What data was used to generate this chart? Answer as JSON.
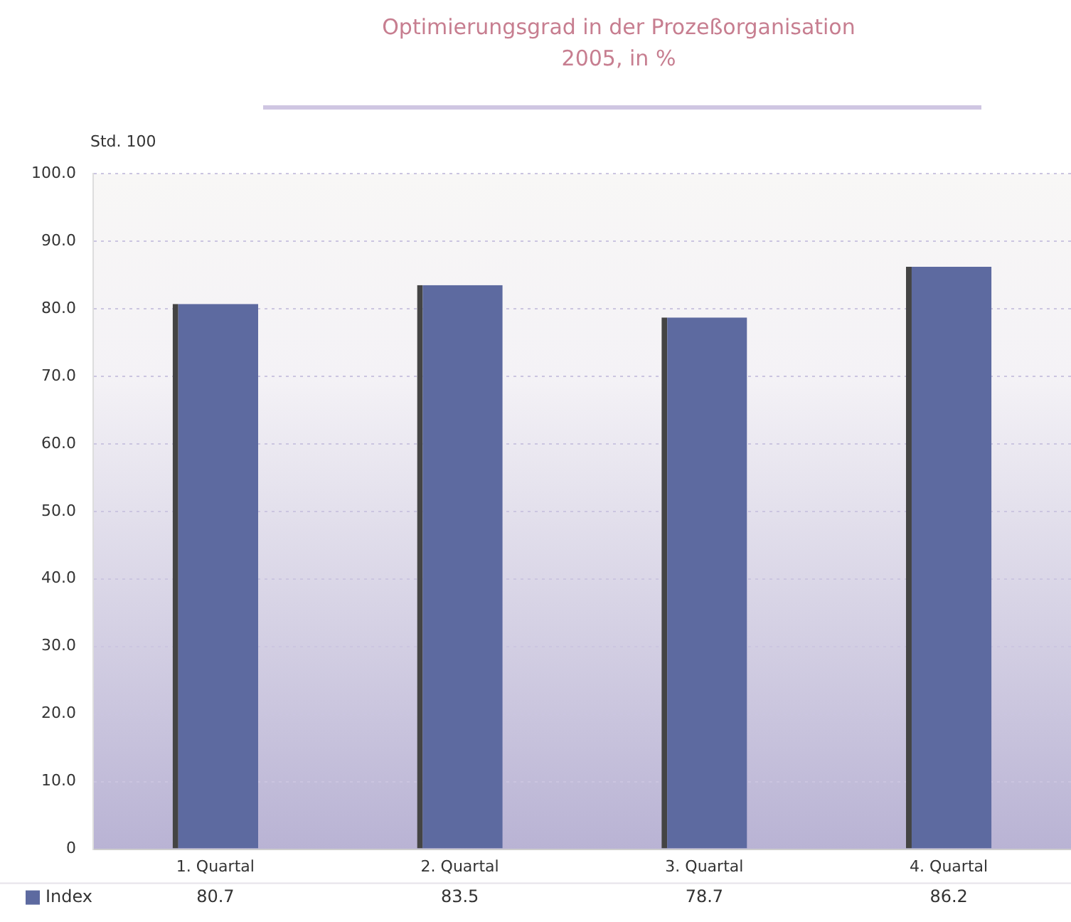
{
  "chart_data": {
    "type": "bar",
    "title": "Optimierungsgrad in der Prozeßorganisation",
    "subtitle": "2005, in %",
    "ylabel": "Std. 100",
    "categories": [
      "1. Quartal",
      "2. Quartal",
      "3. Quartal",
      "4. Quartal"
    ],
    "series": [
      {
        "name": "Index",
        "color": "#5d6aa0",
        "values": [
          80.7,
          83.5,
          78.7,
          86.2
        ]
      }
    ],
    "ylim": [
      0,
      100
    ],
    "yticks": [
      {
        "value": 0,
        "label": "0"
      },
      {
        "value": 10,
        "label": "10.0"
      },
      {
        "value": 20,
        "label": "20.0"
      },
      {
        "value": 30,
        "label": "30.0"
      },
      {
        "value": 40,
        "label": "40.0"
      },
      {
        "value": 50,
        "label": "50.0"
      },
      {
        "value": 60,
        "label": "60.0"
      },
      {
        "value": 70,
        "label": "70.0"
      },
      {
        "value": 80,
        "label": "80.0"
      },
      {
        "value": 90,
        "label": "90.0"
      },
      {
        "value": 100,
        "label": "100.0"
      }
    ],
    "grid": "y",
    "line_style": "dotted",
    "data_labels": true,
    "legend": "bottom left"
  }
}
